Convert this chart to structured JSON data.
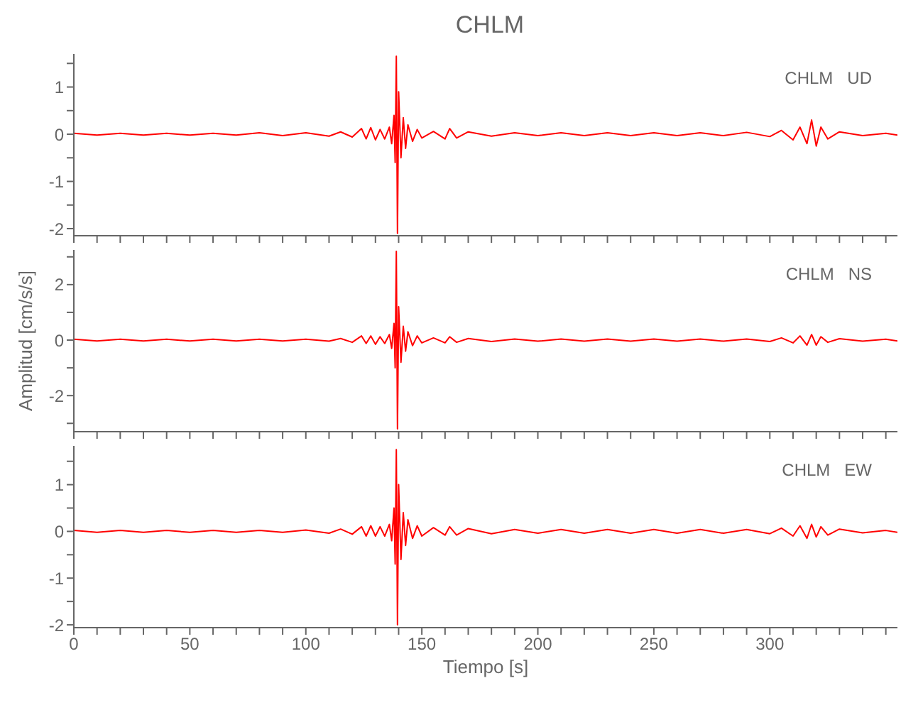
{
  "chart_data": [
    {
      "type": "line",
      "title": "CHLM",
      "annotations": [
        "CHLM   UD"
      ],
      "marker": "none",
      "line_style": "solid",
      "tick_labels": "y",
      "xlim": [
        0,
        355
      ],
      "xticks": [
        0,
        {
          "value": 10,
          "label": null
        },
        {
          "value": 20,
          "label": null
        },
        {
          "value": 30,
          "label": null
        },
        {
          "value": 40,
          "label": null
        },
        50,
        {
          "value": 60,
          "label": null
        },
        {
          "value": 70,
          "label": null
        },
        {
          "value": 80,
          "label": null
        },
        {
          "value": 90,
          "label": null
        },
        100,
        {
          "value": 110,
          "label": null
        },
        {
          "value": 120,
          "label": null
        },
        {
          "value": 130,
          "label": null
        },
        {
          "value": 140,
          "label": null
        },
        150,
        {
          "value": 160,
          "label": null
        },
        {
          "value": 170,
          "label": null
        },
        {
          "value": 180,
          "label": null
        },
        {
          "value": 190,
          "label": null
        },
        200,
        {
          "value": 210,
          "label": null
        },
        {
          "value": 220,
          "label": null
        },
        {
          "value": 230,
          "label": null
        },
        {
          "value": 240,
          "label": null
        },
        250,
        {
          "value": 260,
          "label": null
        },
        {
          "value": 270,
          "label": null
        },
        {
          "value": 280,
          "label": null
        },
        {
          "value": 290,
          "label": null
        },
        300,
        {
          "value": 310,
          "label": null
        },
        {
          "value": 320,
          "label": null
        },
        {
          "value": 330,
          "label": null
        },
        {
          "value": 340,
          "label": null
        },
        {
          "value": 350,
          "label": null
        }
      ],
      "ylim": [
        -2.15,
        1.7
      ],
      "yticks": [
        -2,
        {
          "value": -1.5,
          "label": null
        },
        -1,
        {
          "value": -0.5,
          "label": null
        },
        0,
        {
          "value": 0.5,
          "label": null
        },
        1,
        {
          "value": 1.5,
          "label": null
        }
      ],
      "x": [
        0,
        10,
        20,
        30,
        40,
        50,
        60,
        70,
        80,
        90,
        100,
        110,
        115,
        120,
        124,
        126,
        128,
        130,
        132,
        134,
        136,
        137,
        138,
        138.5,
        139,
        139.5,
        140,
        141,
        142,
        143,
        144,
        146,
        148,
        150,
        155,
        160,
        162,
        165,
        170,
        180,
        190,
        200,
        210,
        220,
        230,
        240,
        250,
        260,
        270,
        280,
        290,
        300,
        305,
        310,
        313,
        316,
        318,
        320,
        322,
        325,
        330,
        340,
        350,
        355
      ],
      "series": [
        {
          "color": "#ff0000",
          "values": [
            0.02,
            -0.02,
            0.02,
            -0.02,
            0.02,
            -0.02,
            0.02,
            -0.02,
            0.03,
            -0.03,
            0.03,
            -0.04,
            0.05,
            -0.06,
            0.12,
            -0.1,
            0.14,
            -0.12,
            0.1,
            -0.1,
            0.15,
            -0.2,
            0.4,
            -0.6,
            1.65,
            -2.1,
            0.9,
            -0.5,
            0.35,
            -0.3,
            0.2,
            -0.15,
            0.1,
            -0.08,
            0.06,
            -0.1,
            0.12,
            -0.08,
            0.05,
            -0.04,
            0.03,
            -0.03,
            0.03,
            -0.03,
            0.03,
            -0.03,
            0.03,
            -0.03,
            0.03,
            -0.03,
            0.04,
            -0.05,
            0.08,
            -0.12,
            0.15,
            -0.2,
            0.3,
            -0.25,
            0.15,
            -0.1,
            0.05,
            -0.03,
            0.02,
            -0.02
          ]
        }
      ]
    },
    {
      "type": "line",
      "ylabel": "Amplitud [cm/s/s]",
      "annotations": [
        "CHLM   NS"
      ],
      "marker": "none",
      "line_style": "solid",
      "tick_labels": "y",
      "xlim": [
        0,
        355
      ],
      "xticks": [
        0,
        {
          "value": 10,
          "label": null
        },
        {
          "value": 20,
          "label": null
        },
        {
          "value": 30,
          "label": null
        },
        {
          "value": 40,
          "label": null
        },
        50,
        {
          "value": 60,
          "label": null
        },
        {
          "value": 70,
          "label": null
        },
        {
          "value": 80,
          "label": null
        },
        {
          "value": 90,
          "label": null
        },
        100,
        {
          "value": 110,
          "label": null
        },
        {
          "value": 120,
          "label": null
        },
        {
          "value": 130,
          "label": null
        },
        {
          "value": 140,
          "label": null
        },
        150,
        {
          "value": 160,
          "label": null
        },
        {
          "value": 170,
          "label": null
        },
        {
          "value": 180,
          "label": null
        },
        {
          "value": 190,
          "label": null
        },
        200,
        {
          "value": 210,
          "label": null
        },
        {
          "value": 220,
          "label": null
        },
        {
          "value": 230,
          "label": null
        },
        {
          "value": 240,
          "label": null
        },
        250,
        {
          "value": 260,
          "label": null
        },
        {
          "value": 270,
          "label": null
        },
        {
          "value": 280,
          "label": null
        },
        {
          "value": 290,
          "label": null
        },
        300,
        {
          "value": 310,
          "label": null
        },
        {
          "value": 320,
          "label": null
        },
        {
          "value": 330,
          "label": null
        },
        {
          "value": 340,
          "label": null
        },
        {
          "value": 350,
          "label": null
        }
      ],
      "ylim": [
        -3.3,
        3.25
      ],
      "yticks": [
        {
          "value": -3,
          "label": null
        },
        -2,
        {
          "value": -1,
          "label": null
        },
        0,
        {
          "value": 1,
          "label": null
        },
        2,
        {
          "value": 3,
          "label": null
        }
      ],
      "x": [
        0,
        10,
        20,
        30,
        40,
        50,
        60,
        70,
        80,
        90,
        100,
        110,
        115,
        120,
        124,
        126,
        128,
        130,
        132,
        134,
        136,
        137,
        138,
        138.5,
        139,
        139.5,
        140,
        141,
        142,
        143,
        144,
        146,
        148,
        150,
        155,
        160,
        162,
        165,
        170,
        180,
        190,
        200,
        210,
        220,
        230,
        240,
        250,
        260,
        270,
        280,
        290,
        300,
        305,
        310,
        313,
        316,
        318,
        320,
        322,
        325,
        330,
        340,
        350,
        355
      ],
      "series": [
        {
          "color": "#ff0000",
          "values": [
            0.03,
            -0.03,
            0.03,
            -0.03,
            0.03,
            -0.03,
            0.03,
            -0.03,
            0.03,
            -0.03,
            0.03,
            -0.04,
            0.06,
            -0.08,
            0.15,
            -0.12,
            0.15,
            -0.15,
            0.12,
            -0.12,
            0.2,
            -0.3,
            0.6,
            -1.0,
            3.2,
            -3.2,
            1.2,
            -0.8,
            0.5,
            -0.4,
            0.3,
            -0.2,
            0.15,
            -0.1,
            0.08,
            -0.1,
            0.12,
            -0.08,
            0.06,
            -0.05,
            0.04,
            -0.04,
            0.04,
            -0.04,
            0.04,
            -0.04,
            0.04,
            -0.04,
            0.04,
            -0.04,
            0.04,
            -0.05,
            0.08,
            -0.1,
            0.15,
            -0.18,
            0.2,
            -0.18,
            0.12,
            -0.08,
            0.05,
            -0.04,
            0.03,
            -0.03
          ]
        }
      ]
    },
    {
      "type": "line",
      "xlabel": "Tiempo [s]",
      "annotations": [
        "CHLM   EW"
      ],
      "marker": "none",
      "line_style": "solid",
      "xlim": [
        0,
        355
      ],
      "xticks": [
        0,
        {
          "value": 10,
          "label": null
        },
        {
          "value": 20,
          "label": null
        },
        {
          "value": 30,
          "label": null
        },
        {
          "value": 40,
          "label": null
        },
        50,
        {
          "value": 60,
          "label": null
        },
        {
          "value": 70,
          "label": null
        },
        {
          "value": 80,
          "label": null
        },
        {
          "value": 90,
          "label": null
        },
        100,
        {
          "value": 110,
          "label": null
        },
        {
          "value": 120,
          "label": null
        },
        {
          "value": 130,
          "label": null
        },
        {
          "value": 140,
          "label": null
        },
        150,
        {
          "value": 160,
          "label": null
        },
        {
          "value": 170,
          "label": null
        },
        {
          "value": 180,
          "label": null
        },
        {
          "value": 190,
          "label": null
        },
        200,
        {
          "value": 210,
          "label": null
        },
        {
          "value": 220,
          "label": null
        },
        {
          "value": 230,
          "label": null
        },
        {
          "value": 240,
          "label": null
        },
        250,
        {
          "value": 260,
          "label": null
        },
        {
          "value": 270,
          "label": null
        },
        {
          "value": 280,
          "label": null
        },
        {
          "value": 290,
          "label": null
        },
        300,
        {
          "value": 310,
          "label": null
        },
        {
          "value": 320,
          "label": null
        },
        {
          "value": 330,
          "label": null
        },
        {
          "value": 340,
          "label": null
        },
        {
          "value": 350,
          "label": null
        }
      ],
      "ylim": [
        -2.06,
        1.83
      ],
      "yticks": [
        -2,
        {
          "value": -1.5,
          "label": null
        },
        -1,
        {
          "value": -0.5,
          "label": null
        },
        0,
        {
          "value": 0.5,
          "label": null
        },
        1,
        {
          "value": 1.5,
          "label": null
        }
      ],
      "x": [
        0,
        10,
        20,
        30,
        40,
        50,
        60,
        70,
        80,
        90,
        100,
        110,
        115,
        120,
        124,
        126,
        128,
        130,
        132,
        134,
        136,
        137,
        138,
        138.5,
        139,
        139.5,
        140,
        141,
        142,
        143,
        144,
        146,
        148,
        150,
        155,
        160,
        162,
        165,
        170,
        180,
        190,
        200,
        210,
        220,
        230,
        240,
        250,
        260,
        270,
        280,
        290,
        300,
        305,
        310,
        313,
        316,
        318,
        320,
        322,
        325,
        330,
        340,
        350,
        355
      ],
      "series": [
        {
          "color": "#ff0000",
          "values": [
            0.02,
            -0.02,
            0.02,
            -0.02,
            0.02,
            -0.02,
            0.02,
            -0.02,
            0.02,
            -0.02,
            0.03,
            -0.04,
            0.05,
            -0.06,
            0.1,
            -0.1,
            0.12,
            -0.1,
            0.1,
            -0.1,
            0.15,
            -0.2,
            0.5,
            -0.7,
            1.75,
            -2.0,
            1.0,
            -0.6,
            0.4,
            -0.3,
            0.25,
            -0.15,
            0.12,
            -0.1,
            0.08,
            -0.08,
            0.1,
            -0.08,
            0.06,
            -0.05,
            0.04,
            -0.04,
            0.04,
            -0.04,
            0.04,
            -0.04,
            0.04,
            -0.04,
            0.04,
            -0.04,
            0.04,
            -0.05,
            0.07,
            -0.1,
            0.12,
            -0.15,
            0.15,
            -0.12,
            0.1,
            -0.08,
            0.05,
            -0.03,
            0.02,
            -0.02
          ]
        }
      ]
    }
  ]
}
